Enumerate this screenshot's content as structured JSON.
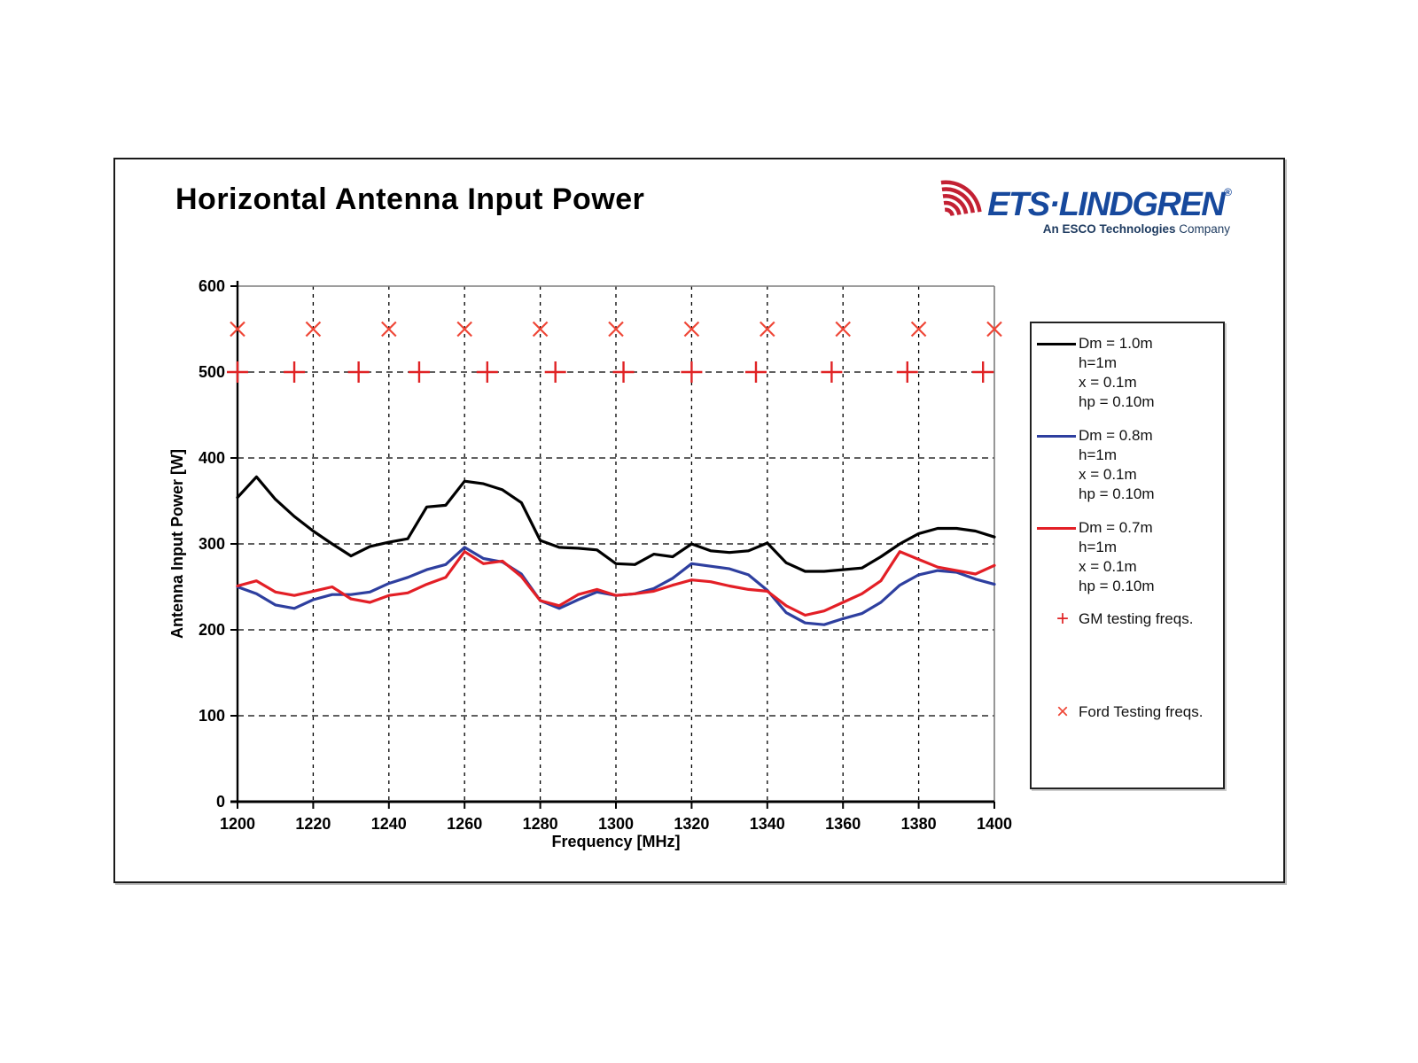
{
  "page": {
    "title": "Horizontal Antenna Input Power"
  },
  "logo": {
    "brand": "ETS·LINDGREN",
    "registered": "®",
    "tagline_bold": "An ESCO Technologies",
    "tagline_rest": " Company",
    "brand_color": "#17499d",
    "tagline_color": "#1d3a5f",
    "arc_color": "#c32033",
    "arcs_icon": "radio-waves-icon"
  },
  "chart_data": {
    "type": "line",
    "title": "Horizontal Antenna Input Power",
    "xlabel": "Frequency [MHz]",
    "ylabel": "Antenna Input Power [W]",
    "xlim": [
      1200,
      1400
    ],
    "ylim": [
      0,
      600
    ],
    "x_ticks": [
      1200,
      1220,
      1240,
      1260,
      1280,
      1300,
      1320,
      1340,
      1360,
      1380,
      1400
    ],
    "y_ticks": [
      0,
      100,
      200,
      300,
      400,
      500,
      600
    ],
    "grid": "dashed",
    "legend_position": "right",
    "x_start": 1200,
    "x_step": 5,
    "series": [
      {
        "name": "Dm = 1.0m",
        "color": "#000000",
        "values": [
          354,
          378,
          352,
          332,
          315,
          300,
          286,
          297,
          302,
          306,
          343,
          345,
          373,
          370,
          363,
          348,
          304,
          296,
          295,
          293,
          277,
          276,
          288,
          285,
          300,
          292,
          290,
          292,
          301,
          278,
          268,
          268,
          270,
          272,
          285,
          300,
          312,
          318,
          318,
          315,
          308
        ]
      },
      {
        "name": "Dm = 0.8m",
        "color": "#2e3f9f",
        "values": [
          250,
          242,
          229,
          225,
          235,
          241,
          241,
          244,
          254,
          261,
          270,
          276,
          296,
          283,
          279,
          265,
          234,
          225,
          235,
          244,
          240,
          242,
          248,
          260,
          277,
          274,
          271,
          264,
          246,
          220,
          208,
          206,
          213,
          219,
          232,
          252,
          264,
          269,
          267,
          259,
          253
        ]
      },
      {
        "name": "Dm = 0.7m",
        "color": "#e31f26",
        "values": [
          251,
          257,
          244,
          240,
          245,
          250,
          236,
          232,
          240,
          243,
          253,
          261,
          291,
          277,
          280,
          262,
          234,
          228,
          241,
          247,
          240,
          242,
          245,
          252,
          258,
          256,
          251,
          247,
          245,
          228,
          217,
          222,
          232,
          242,
          257,
          291,
          282,
          273,
          269,
          265,
          275
        ]
      }
    ],
    "markers": [
      {
        "name": "GM testing freqs.",
        "symbol": "plus",
        "color": "#e02325",
        "y": 500,
        "x": [
          1200,
          1215,
          1232,
          1248,
          1266,
          1284,
          1302,
          1320,
          1337,
          1357,
          1377,
          1397
        ]
      },
      {
        "name": "Ford Testing freqs.",
        "symbol": "x",
        "color": "#ef4636",
        "y": 550,
        "x": [
          1200,
          1220,
          1240,
          1260,
          1280,
          1300,
          1320,
          1340,
          1360,
          1380,
          1400
        ]
      }
    ]
  },
  "legend": {
    "items": [
      {
        "type": "line",
        "label": "Dm = 1.0m",
        "color": "#000000",
        "sublines": [
          "h=1m",
          "x = 0.1m",
          "hp = 0.10m"
        ]
      },
      {
        "type": "line",
        "label": "Dm = 0.8m",
        "color": "#2e3f9f",
        "sublines": [
          "h=1m",
          "x = 0.1m",
          "hp = 0.10m"
        ]
      },
      {
        "type": "line",
        "label": "Dm = 0.7m",
        "color": "#e31f26",
        "sublines": [
          "h=1m",
          "x = 0.1m",
          "hp = 0.10m"
        ]
      },
      {
        "type": "marker",
        "label": "GM testing freqs.",
        "symbol": "+",
        "color": "#e02325"
      },
      {
        "type": "marker",
        "label": "Ford Testing freqs.",
        "symbol": "×",
        "color": "#ef4636"
      }
    ]
  }
}
